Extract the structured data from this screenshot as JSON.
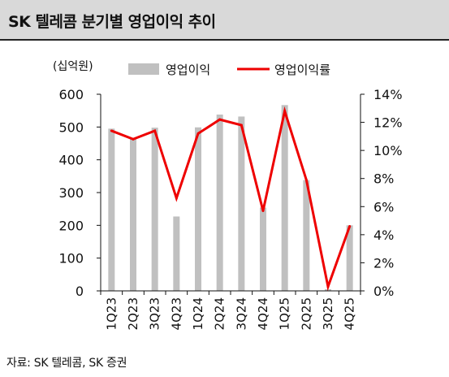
{
  "header": {
    "title": "SK 텔레콤 분기별 영업이익 추이"
  },
  "footer": {
    "source": "자료: SK 텔레콤, SK 증권"
  },
  "colors": {
    "bar": "#c0c0c0",
    "line": "#ee0000",
    "title_bg": "#d9d9d9"
  },
  "chart_data": {
    "type": "bar+line",
    "unit_label": "(십억원)",
    "categories": [
      "1Q23",
      "2Q23",
      "3Q23",
      "4Q23",
      "1Q24",
      "2Q24",
      "3Q24",
      "4Q24",
      "1Q25",
      "2Q25",
      "3Q25",
      "4Q25"
    ],
    "series": [
      {
        "name": "영업이익",
        "type": "bar",
        "axis": "left",
        "values": [
          495,
          463,
          498,
          227,
          499,
          538,
          532,
          254,
          567,
          338,
          5,
          200
        ]
      },
      {
        "name": "영업이익률",
        "type": "line",
        "axis": "right",
        "values": [
          11.4,
          10.8,
          11.4,
          6.6,
          11.2,
          12.2,
          11.8,
          5.7,
          12.8,
          7.9,
          0.3,
          4.6
        ]
      }
    ],
    "left_axis": {
      "ylim": [
        0,
        600
      ],
      "ticks": [
        "0",
        "100",
        "200",
        "300",
        "400",
        "500",
        "600"
      ]
    },
    "right_axis": {
      "ylim": [
        0,
        14
      ],
      "ticks": [
        "0%",
        "2%",
        "4%",
        "6%",
        "8%",
        "10%",
        "12%",
        "14%"
      ]
    },
    "legend": {
      "position": "top",
      "items": [
        "영업이익",
        "영업이익률"
      ]
    },
    "grid": false
  }
}
